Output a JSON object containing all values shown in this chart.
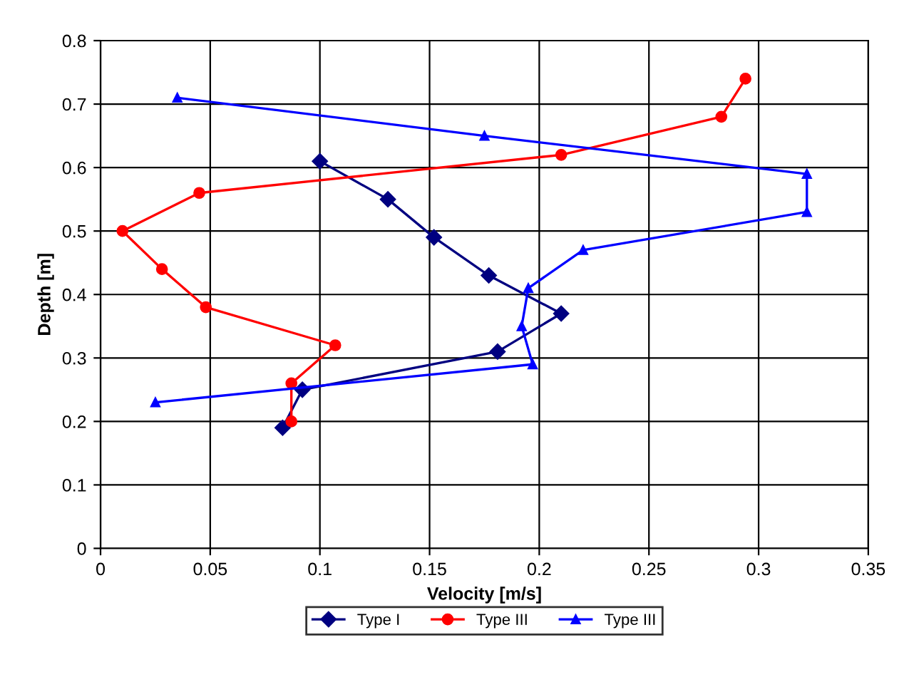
{
  "chart_data": {
    "type": "line",
    "xlabel": "Velocity [m/s]",
    "ylabel": "Depth [m]",
    "xlim": [
      0,
      0.35
    ],
    "xticks": [
      0,
      0.05,
      0.1,
      0.15,
      0.2,
      0.25,
      0.3,
      0.35
    ],
    "ylim": [
      0,
      0.8
    ],
    "yticks": [
      0,
      0.1,
      0.2,
      0.3,
      0.4,
      0.5,
      0.6,
      0.7,
      0.8
    ],
    "grid": true,
    "legend": "bottom",
    "series": [
      {
        "name": "Type I",
        "color": "#000080",
        "marker": "diamond",
        "x": [
          0.083,
          0.092,
          0.181,
          0.21,
          0.177,
          0.152,
          0.131,
          0.1
        ],
        "values": [
          0.19,
          0.25,
          0.31,
          0.37,
          0.43,
          0.49,
          0.55,
          0.61
        ]
      },
      {
        "name": "Type III",
        "color": "#ff0000",
        "marker": "circle",
        "x": [
          0.087,
          0.087,
          0.107,
          0.048,
          0.028,
          0.01,
          0.045,
          0.21,
          0.283,
          0.294
        ],
        "values": [
          0.2,
          0.26,
          0.32,
          0.38,
          0.44,
          0.5,
          0.56,
          0.62,
          0.68,
          0.74
        ]
      },
      {
        "name": "Type III",
        "color": "#0000ff",
        "marker": "triangle",
        "x": [
          0.025,
          0.197,
          0.192,
          0.195,
          0.22,
          0.322,
          0.322,
          0.175,
          0.035
        ],
        "values": [
          0.23,
          0.29,
          0.35,
          0.41,
          0.47,
          0.53,
          0.59,
          0.65,
          0.71
        ]
      }
    ]
  }
}
